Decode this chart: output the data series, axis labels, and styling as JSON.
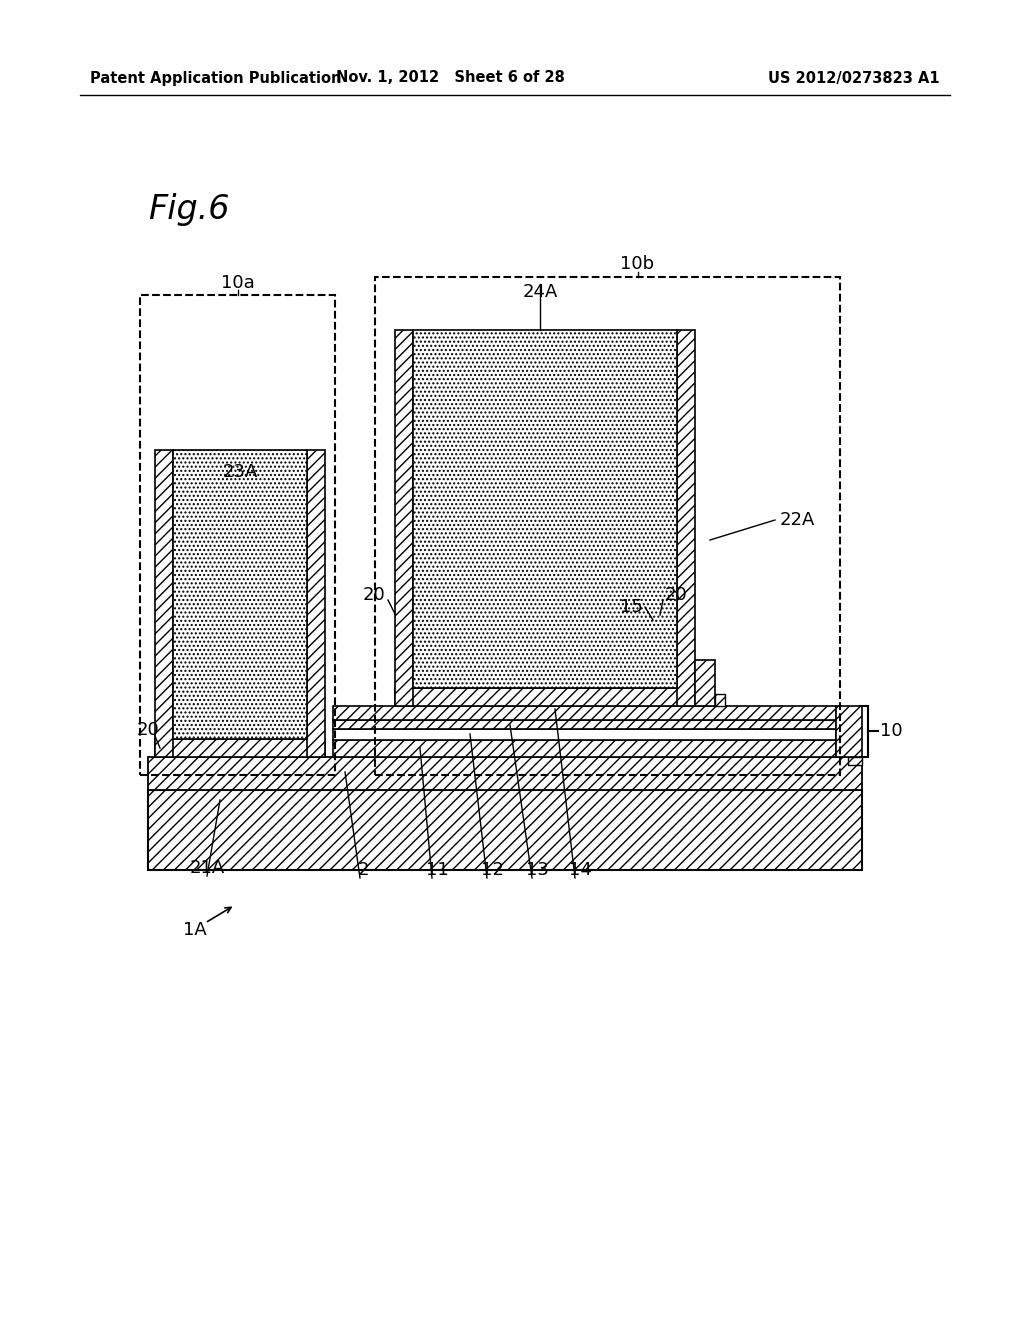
{
  "bg_color": "#ffffff",
  "header_left": "Patent Application Publication",
  "header_mid": "Nov. 1, 2012   Sheet 6 of 28",
  "header_right": "US 2012/0273823 A1",
  "fig_label": "Fig.6"
}
